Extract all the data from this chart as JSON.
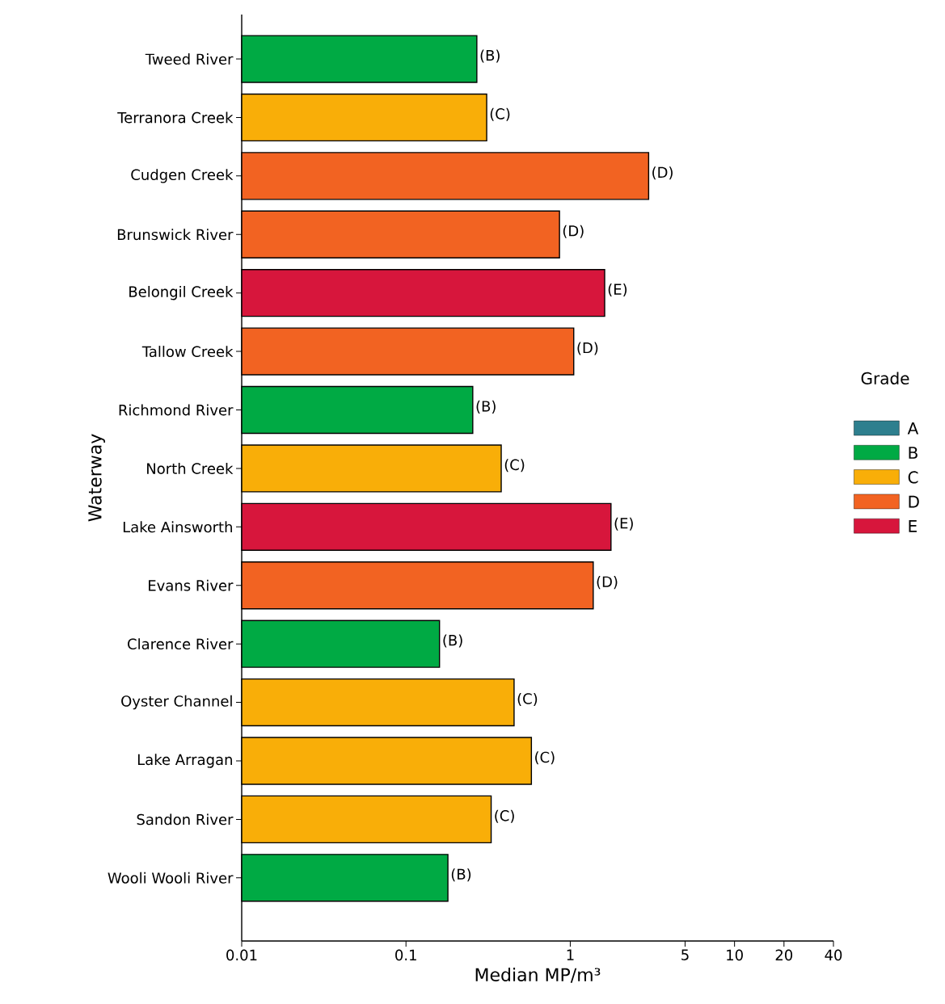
{
  "chart_data": {
    "type": "bar",
    "orientation": "horizontal",
    "stacked": true,
    "log": "x",
    "xlabel": "Median MP/m³",
    "ylabel": "Waterway",
    "legend_title": "Grade",
    "legend": "right",
    "categories": [
      "Tweed River",
      "Terranora Creek",
      "Cudgen Creek",
      "Brunswick River",
      "Belongil Creek",
      "Tallow Creek",
      "Richmond River",
      "North Creek",
      "Lake Ainsworth",
      "Evans River",
      "Clarence River",
      "Oyster Channel",
      "Lake Arragan",
      "Sandon River",
      "Wooli Wooli River"
    ],
    "xlim": [
      0.01,
      40
    ],
    "xticks": [
      0.01,
      0.1,
      1,
      5,
      10,
      20,
      40
    ],
    "series": [
      {
        "name": "A",
        "color": "#2e7f8e",
        "values": [
          null,
          null,
          null,
          null,
          null,
          null,
          null,
          null,
          null,
          null,
          null,
          null,
          null,
          null,
          null
        ],
        "value_labels": [
          null,
          null,
          null,
          null,
          null,
          null,
          null,
          null,
          null,
          null,
          null,
          null,
          null,
          null,
          null
        ]
      },
      {
        "name": "B",
        "color": "#00aa44",
        "values": [
          0.27,
          null,
          null,
          null,
          null,
          null,
          0.255,
          null,
          null,
          null,
          0.16,
          null,
          null,
          null,
          0.18
        ],
        "value_labels": [
          "(B)",
          null,
          null,
          null,
          null,
          null,
          "(B)",
          null,
          null,
          null,
          "(B)",
          null,
          null,
          null,
          "(B)"
        ]
      },
      {
        "name": "C",
        "color": "#f9ae08",
        "values": [
          null,
          0.31,
          null,
          null,
          null,
          null,
          null,
          0.38,
          null,
          null,
          null,
          0.455,
          0.58,
          0.33,
          null
        ],
        "value_labels": [
          null,
          "(C)",
          null,
          null,
          null,
          null,
          null,
          "(C)",
          null,
          null,
          null,
          "(C)",
          "(C)",
          "(C)",
          null
        ]
      },
      {
        "name": "D",
        "color": "#f26322",
        "values": [
          null,
          null,
          3.0,
          0.86,
          null,
          1.05,
          null,
          null,
          null,
          1.38,
          null,
          null,
          null,
          null,
          null
        ],
        "value_labels": [
          null,
          null,
          "(D)",
          "(D)",
          null,
          "(D)",
          null,
          null,
          null,
          "(D)",
          null,
          null,
          null,
          null,
          null
        ]
      },
      {
        "name": "E",
        "color": "#d7163c",
        "values": [
          null,
          null,
          null,
          null,
          1.62,
          null,
          null,
          null,
          1.77,
          null,
          null,
          null,
          null,
          null,
          null
        ],
        "value_labels": [
          null,
          null,
          null,
          null,
          "(E)",
          null,
          null,
          null,
          "(E)",
          null,
          null,
          null,
          null,
          null,
          null
        ]
      }
    ]
  }
}
